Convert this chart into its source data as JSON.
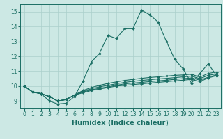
{
  "xlabel": "Humidex (Indice chaleur)",
  "bg_color": "#cce8e4",
  "line_color": "#1a6e64",
  "grid_color": "#aacfcb",
  "xlim": [
    -0.5,
    23.5
  ],
  "ylim": [
    8.5,
    15.5
  ],
  "xticks": [
    0,
    1,
    2,
    3,
    4,
    5,
    6,
    7,
    8,
    9,
    10,
    11,
    12,
    13,
    14,
    15,
    16,
    17,
    18,
    19,
    20,
    21,
    22,
    23
  ],
  "yticks": [
    9,
    10,
    11,
    12,
    13,
    14,
    15
  ],
  "lines": [
    [
      10.0,
      9.6,
      9.5,
      9.0,
      8.8,
      8.85,
      9.3,
      10.3,
      11.6,
      12.2,
      13.4,
      13.2,
      13.85,
      13.85,
      15.1,
      14.8,
      14.3,
      13.0,
      11.8,
      11.15,
      10.2,
      10.85,
      11.5,
      10.7
    ],
    [
      10.0,
      9.6,
      9.5,
      9.3,
      9.0,
      9.1,
      9.4,
      9.55,
      9.7,
      9.8,
      9.9,
      10.0,
      10.05,
      10.1,
      10.15,
      10.2,
      10.25,
      10.3,
      10.35,
      10.4,
      10.45,
      10.3,
      10.55,
      10.7
    ],
    [
      10.0,
      9.6,
      9.5,
      9.3,
      9.0,
      9.1,
      9.4,
      9.6,
      9.75,
      9.85,
      9.95,
      10.05,
      10.15,
      10.2,
      10.25,
      10.3,
      10.35,
      10.4,
      10.45,
      10.5,
      10.55,
      10.4,
      10.6,
      10.75
    ],
    [
      10.0,
      9.6,
      9.5,
      9.3,
      9.0,
      9.1,
      9.4,
      9.65,
      9.82,
      9.95,
      10.05,
      10.15,
      10.25,
      10.32,
      10.38,
      10.43,
      10.48,
      10.52,
      10.57,
      10.62,
      10.67,
      10.5,
      10.72,
      10.82
    ],
    [
      10.0,
      9.6,
      9.5,
      9.3,
      9.0,
      9.1,
      9.4,
      9.7,
      9.9,
      10.05,
      10.18,
      10.28,
      10.38,
      10.45,
      10.52,
      10.58,
      10.62,
      10.67,
      10.72,
      10.75,
      10.8,
      10.6,
      10.85,
      10.95
    ]
  ],
  "marker": "D",
  "marker_size": 2.0,
  "linewidth": 0.8,
  "tick_fontsize": 5.5,
  "label_fontsize": 7.0
}
